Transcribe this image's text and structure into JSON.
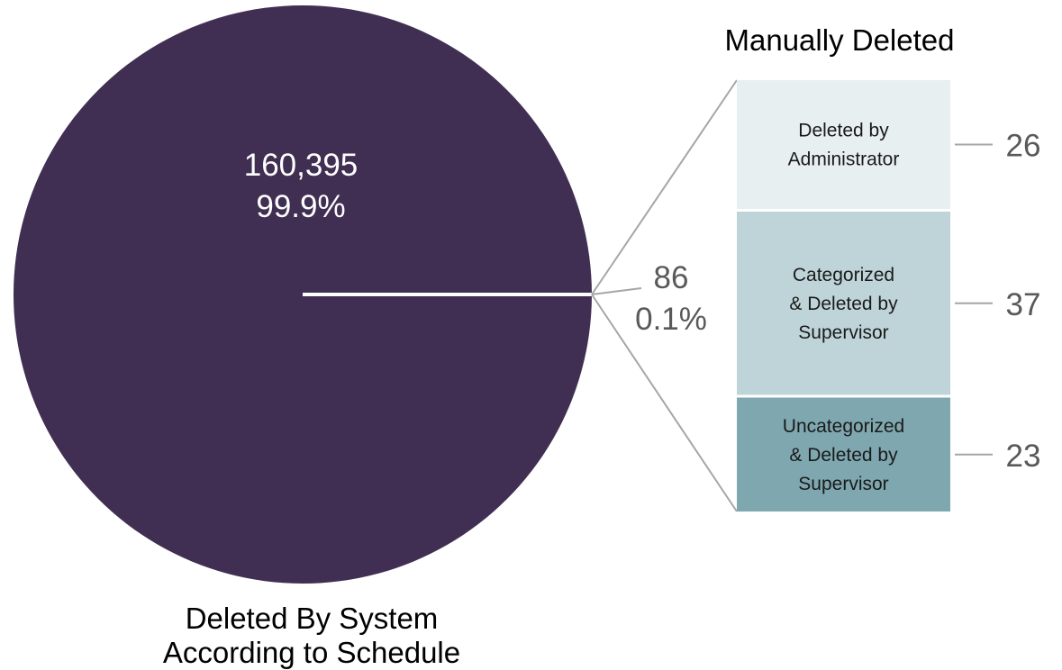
{
  "chart_data": {
    "type": "pie",
    "title": "",
    "main_slices": [
      {
        "label_lines": [
          "Deleted By System",
          "According to Schedule"
        ],
        "value": 160395,
        "value_text": "160,395",
        "percent_text": "99.9%",
        "color": "#402f52"
      },
      {
        "label_lines": [],
        "value": 86,
        "value_text": "86",
        "percent_text": "0.1%",
        "color": "#402f52"
      }
    ],
    "breakdown": {
      "title": "Manually Deleted",
      "type": "stacked-bar",
      "items": [
        {
          "label_lines": [
            "Deleted by",
            "Administrator"
          ],
          "value": 26,
          "value_text": "26",
          "color": "#e8eff1"
        },
        {
          "label_lines": [
            "Categorized",
            "& Deleted by",
            "Supervisor"
          ],
          "value": 37,
          "value_text": "37",
          "color": "#bfd4d9"
        },
        {
          "label_lines": [
            "Uncategorized",
            "& Deleted by",
            "Supervisor"
          ],
          "value": 23,
          "value_text": "23",
          "color": "#7ea7af"
        }
      ]
    }
  }
}
